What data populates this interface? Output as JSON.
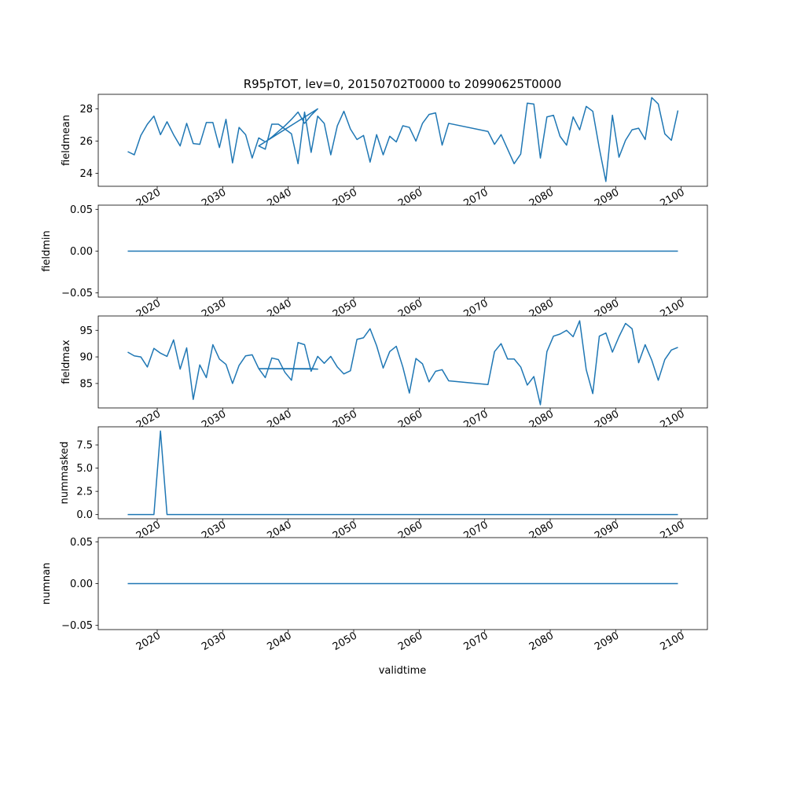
{
  "title": "R95pTOT, lev=0, 20150702T0000 to 20990625T0000",
  "xlabel": "validtime",
  "line_color": "#1f77b4",
  "chart_data": [
    {
      "type": "line",
      "ylabel": "fieldmean",
      "xlim": [
        2011,
        2104
      ],
      "ylim": [
        23.2,
        28.9
      ],
      "yticks": [
        24,
        26,
        28
      ],
      "ytick_labels": [
        "24",
        "26",
        "28"
      ],
      "xticks": [
        2020,
        2030,
        2040,
        2050,
        2060,
        2070,
        2080,
        2090,
        2100
      ],
      "xtick_labels": [
        "2020",
        "2030",
        "2040",
        "2050",
        "2060",
        "2070",
        "2080",
        "2090",
        "2100"
      ],
      "x": [
        2015.5,
        2016.5,
        2017.5,
        2018.5,
        2019.5,
        2020.5,
        2021.5,
        2022.5,
        2023.5,
        2024.5,
        2025.5,
        2026.5,
        2027.5,
        2028.5,
        2029.5,
        2030.5,
        2031.5,
        2032.5,
        2033.5,
        2034.5,
        2035.5,
        2036.5,
        2037.5,
        2038.5,
        2039.5,
        2040.5,
        2041.5,
        2042.5,
        2043.5,
        2044.5,
        2035.5,
        2036.5,
        2037.5,
        2038.5,
        2039.5,
        2040.5,
        2041.5,
        2042.5,
        2043.5,
        2044.5,
        2045.5,
        2046.5,
        2047.5,
        2048.5,
        2049.5,
        2050.5,
        2051.5,
        2052.5,
        2053.5,
        2054.5,
        2055.5,
        2056.5,
        2057.5,
        2058.5,
        2059.5,
        2060.5,
        2061.5,
        2062.5,
        2063.5,
        2064.5,
        2070.5,
        2071.5,
        2072.5,
        2073.5,
        2074.5,
        2075.5,
        2076.5,
        2077.5,
        2078.5,
        2079.5,
        2080.5,
        2081.5,
        2082.5,
        2083.5,
        2084.5,
        2085.5,
        2086.5,
        2087.5,
        2088.5,
        2089.5,
        2090.5,
        2091.5,
        2092.5,
        2093.5,
        2094.5,
        2095.5,
        2096.5,
        2097.5,
        2098.5,
        2099.5
      ],
      "y": [
        25.35,
        25.15,
        26.35,
        27.05,
        27.55,
        26.4,
        27.2,
        26.4,
        25.7,
        27.1,
        25.85,
        25.8,
        27.15,
        27.15,
        25.6,
        27.35,
        24.65,
        26.85,
        26.4,
        24.95,
        26.2,
        25.95,
        26.25,
        26.6,
        26.95,
        27.35,
        27.8,
        27.1,
        27.6,
        28.0,
        25.7,
        25.5,
        27.05,
        27.05,
        26.75,
        26.45,
        24.6,
        27.8,
        25.3,
        27.55,
        27.1,
        25.15,
        26.95,
        27.85,
        26.75,
        26.1,
        26.35,
        24.7,
        26.4,
        25.15,
        26.3,
        25.95,
        26.95,
        26.85,
        26.0,
        27.1,
        27.65,
        27.75,
        25.75,
        27.1,
        26.6,
        25.8,
        26.4,
        25.5,
        24.6,
        25.2,
        28.35,
        28.3,
        24.95,
        27.5,
        27.6,
        26.3,
        25.75,
        27.5,
        26.7,
        28.15,
        27.85,
        25.55,
        23.5,
        27.6,
        25.0,
        26.05,
        26.7,
        26.8,
        26.1,
        28.7,
        28.3,
        26.45,
        26.05,
        27.9
      ]
    },
    {
      "type": "line",
      "ylabel": "fieldmin",
      "xlim": [
        2011,
        2104
      ],
      "ylim": [
        -0.055,
        0.055
      ],
      "yticks": [
        -0.05,
        0.0,
        0.05
      ],
      "ytick_labels": [
        "−0.05",
        "0.00",
        "0.05"
      ],
      "xticks": [
        2020,
        2030,
        2040,
        2050,
        2060,
        2070,
        2080,
        2090,
        2100
      ],
      "xtick_labels": [
        "2020",
        "2030",
        "2040",
        "2050",
        "2060",
        "2070",
        "2080",
        "2090",
        "2100"
      ],
      "x": [
        2015.5,
        2099.5
      ],
      "y": [
        0,
        0
      ]
    },
    {
      "type": "line",
      "ylabel": "fieldmax",
      "xlim": [
        2011,
        2104
      ],
      "ylim": [
        80.4,
        97.7
      ],
      "yticks": [
        85,
        90,
        95
      ],
      "ytick_labels": [
        "85",
        "90",
        "95"
      ],
      "xticks": [
        2020,
        2030,
        2040,
        2050,
        2060,
        2070,
        2080,
        2090,
        2100
      ],
      "xtick_labels": [
        "2020",
        "2030",
        "2040",
        "2050",
        "2060",
        "2070",
        "2080",
        "2090",
        "2100"
      ],
      "x": [
        2015.5,
        2016.5,
        2017.5,
        2018.5,
        2019.5,
        2020.5,
        2021.5,
        2022.5,
        2023.5,
        2024.5,
        2025.5,
        2026.5,
        2027.5,
        2028.5,
        2029.5,
        2030.5,
        2031.5,
        2032.5,
        2033.5,
        2034.5,
        2035.5,
        2036.5,
        2037.5,
        2038.5,
        2039.5,
        2040.5,
        2041.5,
        2042.5,
        2043.5,
        2044.5,
        2035.5,
        2036.5,
        2037.5,
        2038.5,
        2039.5,
        2040.5,
        2041.5,
        2042.5,
        2043.5,
        2044.5,
        2045.5,
        2046.5,
        2047.5,
        2048.5,
        2049.5,
        2050.5,
        2051.5,
        2052.5,
        2053.5,
        2054.5,
        2055.5,
        2056.5,
        2057.5,
        2058.5,
        2059.5,
        2060.5,
        2061.5,
        2062.5,
        2063.5,
        2064.5,
        2070.5,
        2071.5,
        2072.5,
        2073.5,
        2074.5,
        2075.5,
        2076.5,
        2077.5,
        2078.5,
        2079.5,
        2080.5,
        2081.5,
        2082.5,
        2083.5,
        2084.5,
        2085.5,
        2086.5,
        2087.5,
        2088.5,
        2089.5,
        2090.5,
        2091.5,
        2092.5,
        2093.5,
        2094.5,
        2095.5,
        2096.5,
        2097.5,
        2098.5,
        2099.5
      ],
      "y": [
        90.9,
        90.2,
        90.0,
        88.1,
        91.6,
        90.7,
        90.1,
        93.2,
        87.7,
        91.7,
        82.0,
        88.5,
        86.1,
        92.3,
        89.6,
        88.6,
        85.0,
        88.4,
        90.2,
        90.4,
        87.8,
        87.8,
        87.8,
        87.8,
        87.8,
        87.8,
        87.8,
        87.8,
        87.8,
        87.7,
        87.8,
        86.1,
        89.8,
        89.5,
        87.1,
        85.6,
        92.7,
        92.3,
        87.3,
        90.1,
        88.8,
        90.1,
        88.1,
        86.8,
        87.4,
        93.3,
        93.6,
        95.3,
        92.1,
        87.9,
        91.0,
        92.0,
        88.1,
        83.2,
        89.7,
        88.7,
        85.3,
        87.3,
        87.6,
        85.5,
        84.8,
        91.0,
        92.5,
        89.6,
        89.6,
        88.1,
        84.7,
        86.3,
        81.0,
        91.0,
        93.9,
        94.3,
        95.0,
        93.8,
        96.8,
        87.6,
        83.1,
        93.9,
        94.5,
        90.9,
        93.8,
        96.3,
        95.3,
        88.9,
        92.3,
        89.4,
        85.6,
        89.5,
        91.3,
        91.8
      ]
    },
    {
      "type": "line",
      "ylabel": "nummasked",
      "xlim": [
        2011,
        2104
      ],
      "ylim": [
        -0.45,
        9.45
      ],
      "yticks": [
        0,
        2.5,
        5,
        7.5
      ],
      "ytick_labels": [
        "0.0",
        "2.5",
        "5.0",
        "7.5"
      ],
      "xticks": [
        2020,
        2030,
        2040,
        2050,
        2060,
        2070,
        2080,
        2090,
        2100
      ],
      "xtick_labels": [
        "2020",
        "2030",
        "2040",
        "2050",
        "2060",
        "2070",
        "2080",
        "2090",
        "2100"
      ],
      "x": [
        2015.5,
        2016.5,
        2017.5,
        2018.5,
        2019.5,
        2020.5,
        2021.5,
        2022.5,
        2099.5
      ],
      "y": [
        0,
        0,
        0,
        0,
        0,
        9,
        0,
        0,
        0
      ]
    },
    {
      "type": "line",
      "ylabel": "numnan",
      "xlim": [
        2011,
        2104
      ],
      "ylim": [
        -0.055,
        0.055
      ],
      "yticks": [
        -0.05,
        0.0,
        0.05
      ],
      "ytick_labels": [
        "−0.05",
        "0.00",
        "0.05"
      ],
      "xticks": [
        2020,
        2030,
        2040,
        2050,
        2060,
        2070,
        2080,
        2090,
        2100
      ],
      "xtick_labels": [
        "2020",
        "2030",
        "2040",
        "2050",
        "2060",
        "2070",
        "2080",
        "2090",
        "2100"
      ],
      "x": [
        2015.5,
        2099.5
      ],
      "y": [
        0,
        0
      ]
    }
  ]
}
